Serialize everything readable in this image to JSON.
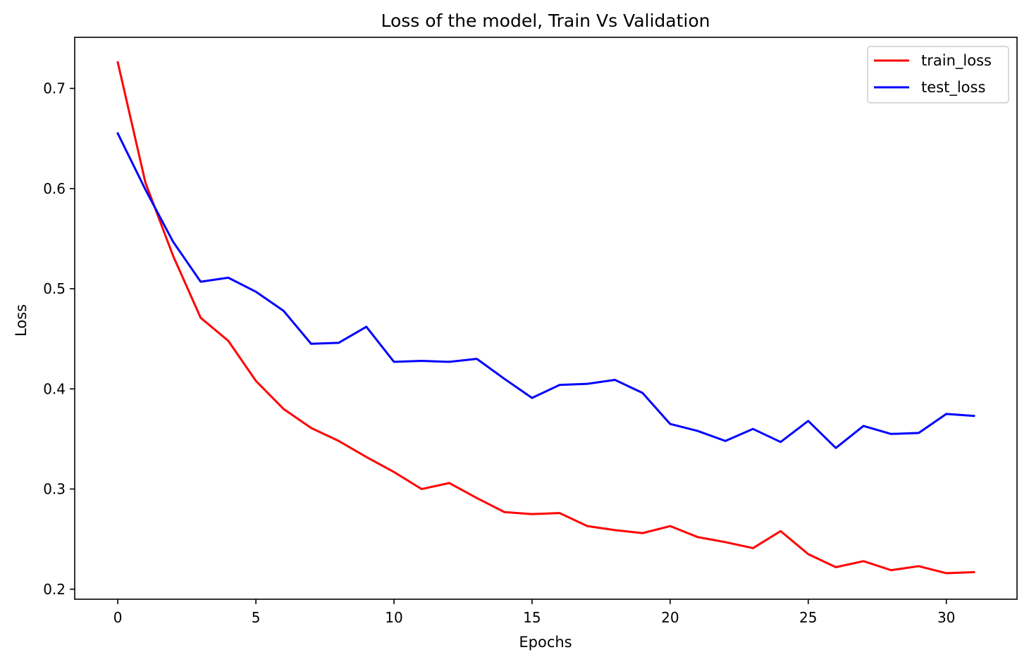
{
  "chart_data": {
    "type": "line",
    "title": "Loss of the model, Train Vs Validation",
    "xlabel": "Epochs",
    "ylabel": "Loss",
    "xlim": [
      -1.56,
      32.56
    ],
    "ylim": [
      0.19,
      0.751
    ],
    "x_ticks": [
      0,
      5,
      10,
      15,
      20,
      25,
      30
    ],
    "y_ticks": [
      0.2,
      0.3,
      0.4,
      0.5,
      0.6,
      0.7
    ],
    "x_tick_labels": [
      "0",
      "5",
      "10",
      "15",
      "20",
      "25",
      "30"
    ],
    "y_tick_labels": [
      "0.2",
      "0.3",
      "0.4",
      "0.5",
      "0.6",
      "0.7"
    ],
    "grid": false,
    "legend_position": "top-right",
    "x": [
      0,
      1,
      2,
      3,
      4,
      5,
      6,
      7,
      8,
      9,
      10,
      11,
      12,
      13,
      14,
      15,
      16,
      17,
      18,
      19,
      20,
      21,
      22,
      23,
      24,
      25,
      26,
      27,
      28,
      29,
      30,
      31
    ],
    "series": [
      {
        "name": "train_loss",
        "color": "#ff0000",
        "values": [
          0.726,
          0.606,
          0.533,
          0.471,
          0.448,
          0.408,
          0.38,
          0.361,
          0.348,
          0.332,
          0.317,
          0.3,
          0.306,
          0.291,
          0.277,
          0.275,
          0.276,
          0.263,
          0.259,
          0.256,
          0.263,
          0.252,
          0.247,
          0.241,
          0.258,
          0.235,
          0.222,
          0.228,
          0.219,
          0.223,
          0.216,
          0.217
        ]
      },
      {
        "name": "test_loss",
        "color": "#0000ff",
        "values": [
          0.655,
          0.599,
          0.547,
          0.507,
          0.511,
          0.497,
          0.478,
          0.445,
          0.446,
          0.462,
          0.427,
          0.428,
          0.427,
          0.43,
          0.41,
          0.391,
          0.404,
          0.405,
          0.409,
          0.396,
          0.365,
          0.358,
          0.348,
          0.36,
          0.347,
          0.368,
          0.341,
          0.363,
          0.355,
          0.356,
          0.375,
          0.373
        ]
      }
    ]
  }
}
